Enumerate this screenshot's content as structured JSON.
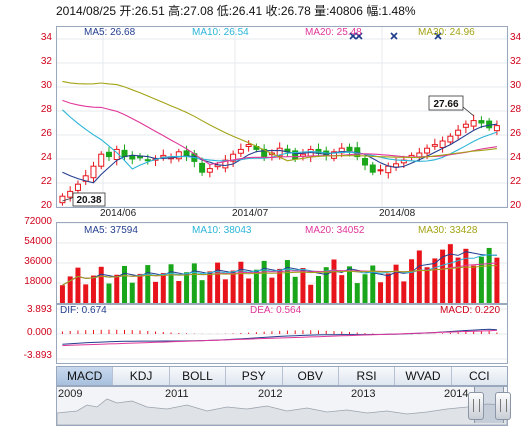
{
  "header": {
    "quote_line": "2014/08/25 开:26.51 高:27.08 低:26.41 收:26.78 量:40806 幅:1.48%"
  },
  "main_legend": {
    "ma5": "MA5: 26.68",
    "ma10": "MA10: 26.54",
    "ma20": "MA20: 25.48",
    "ma30": "MA30: 24.96"
  },
  "volume_legend": {
    "ma5": "MA5: 37594",
    "ma10": "MA10: 38043",
    "ma20": "MA20: 34052",
    "ma30": "MA30: 33428"
  },
  "macd_legend": {
    "dif": "DIF: 0.674",
    "dea": "DEA: 0.564",
    "macd": "MACD: 0.220"
  },
  "price_axis_labels": [
    "34",
    "32",
    "30",
    "28",
    "26",
    "24",
    "22",
    "20"
  ],
  "volume_axis_labels": [
    "72000",
    "54000",
    "36000",
    "18000"
  ],
  "macd_axis_labels": [
    "3.893",
    "0.000",
    "-3.893"
  ],
  "date_labels": [
    "2014/06",
    "2014/07",
    "2014/08"
  ],
  "annotations": {
    "low_price": "20.38",
    "high_price": "27.66"
  },
  "indicator_tabs": [
    "MACD",
    "KDJ",
    "BOLL",
    "PSY",
    "OBV",
    "RSI",
    "WVAD",
    "CCI"
  ],
  "active_tab": "MACD",
  "overview_years": [
    "2009",
    "2011",
    "2012",
    "2013",
    "2014"
  ],
  "colors": {
    "up": "#e8141b",
    "down": "#1aa61a",
    "ma5": "#243f8f",
    "ma10": "#2bb5d8",
    "ma20": "#e0379a",
    "ma30": "#a3a315",
    "axis_text": "#d0021b"
  },
  "chart_data": {
    "type": "candlestick",
    "price_ylim": [
      20,
      35
    ],
    "volume_ylim": [
      0,
      72000
    ],
    "macd_ylim": [
      -3.893,
      3.893
    ],
    "close_series_approx": [
      20.9,
      21.3,
      21.9,
      22.6,
      23.4,
      24.4,
      24.2,
      24.8,
      24.2,
      24.0,
      24.1,
      23.9,
      24.0,
      24.3,
      24.1,
      24.6,
      24.2,
      23.8,
      22.9,
      23.2,
      23.5,
      23.9,
      24.4,
      24.8,
      25.2,
      24.8,
      24.2,
      24.5,
      24.9,
      24.6,
      24.0,
      24.4,
      24.8,
      24.5,
      24.3,
      24.6,
      24.9,
      24.7,
      24.2,
      23.5,
      22.9,
      23.1,
      23.4,
      23.6,
      23.9,
      24.3,
      24.5,
      24.9,
      25.2,
      25.5,
      25.9,
      26.4,
      26.9,
      27.2,
      27.0,
      26.6,
      26.78
    ],
    "last_volume": 40806,
    "macd_last": {
      "dif": 0.674,
      "dea": 0.564,
      "macd": 0.22
    }
  }
}
